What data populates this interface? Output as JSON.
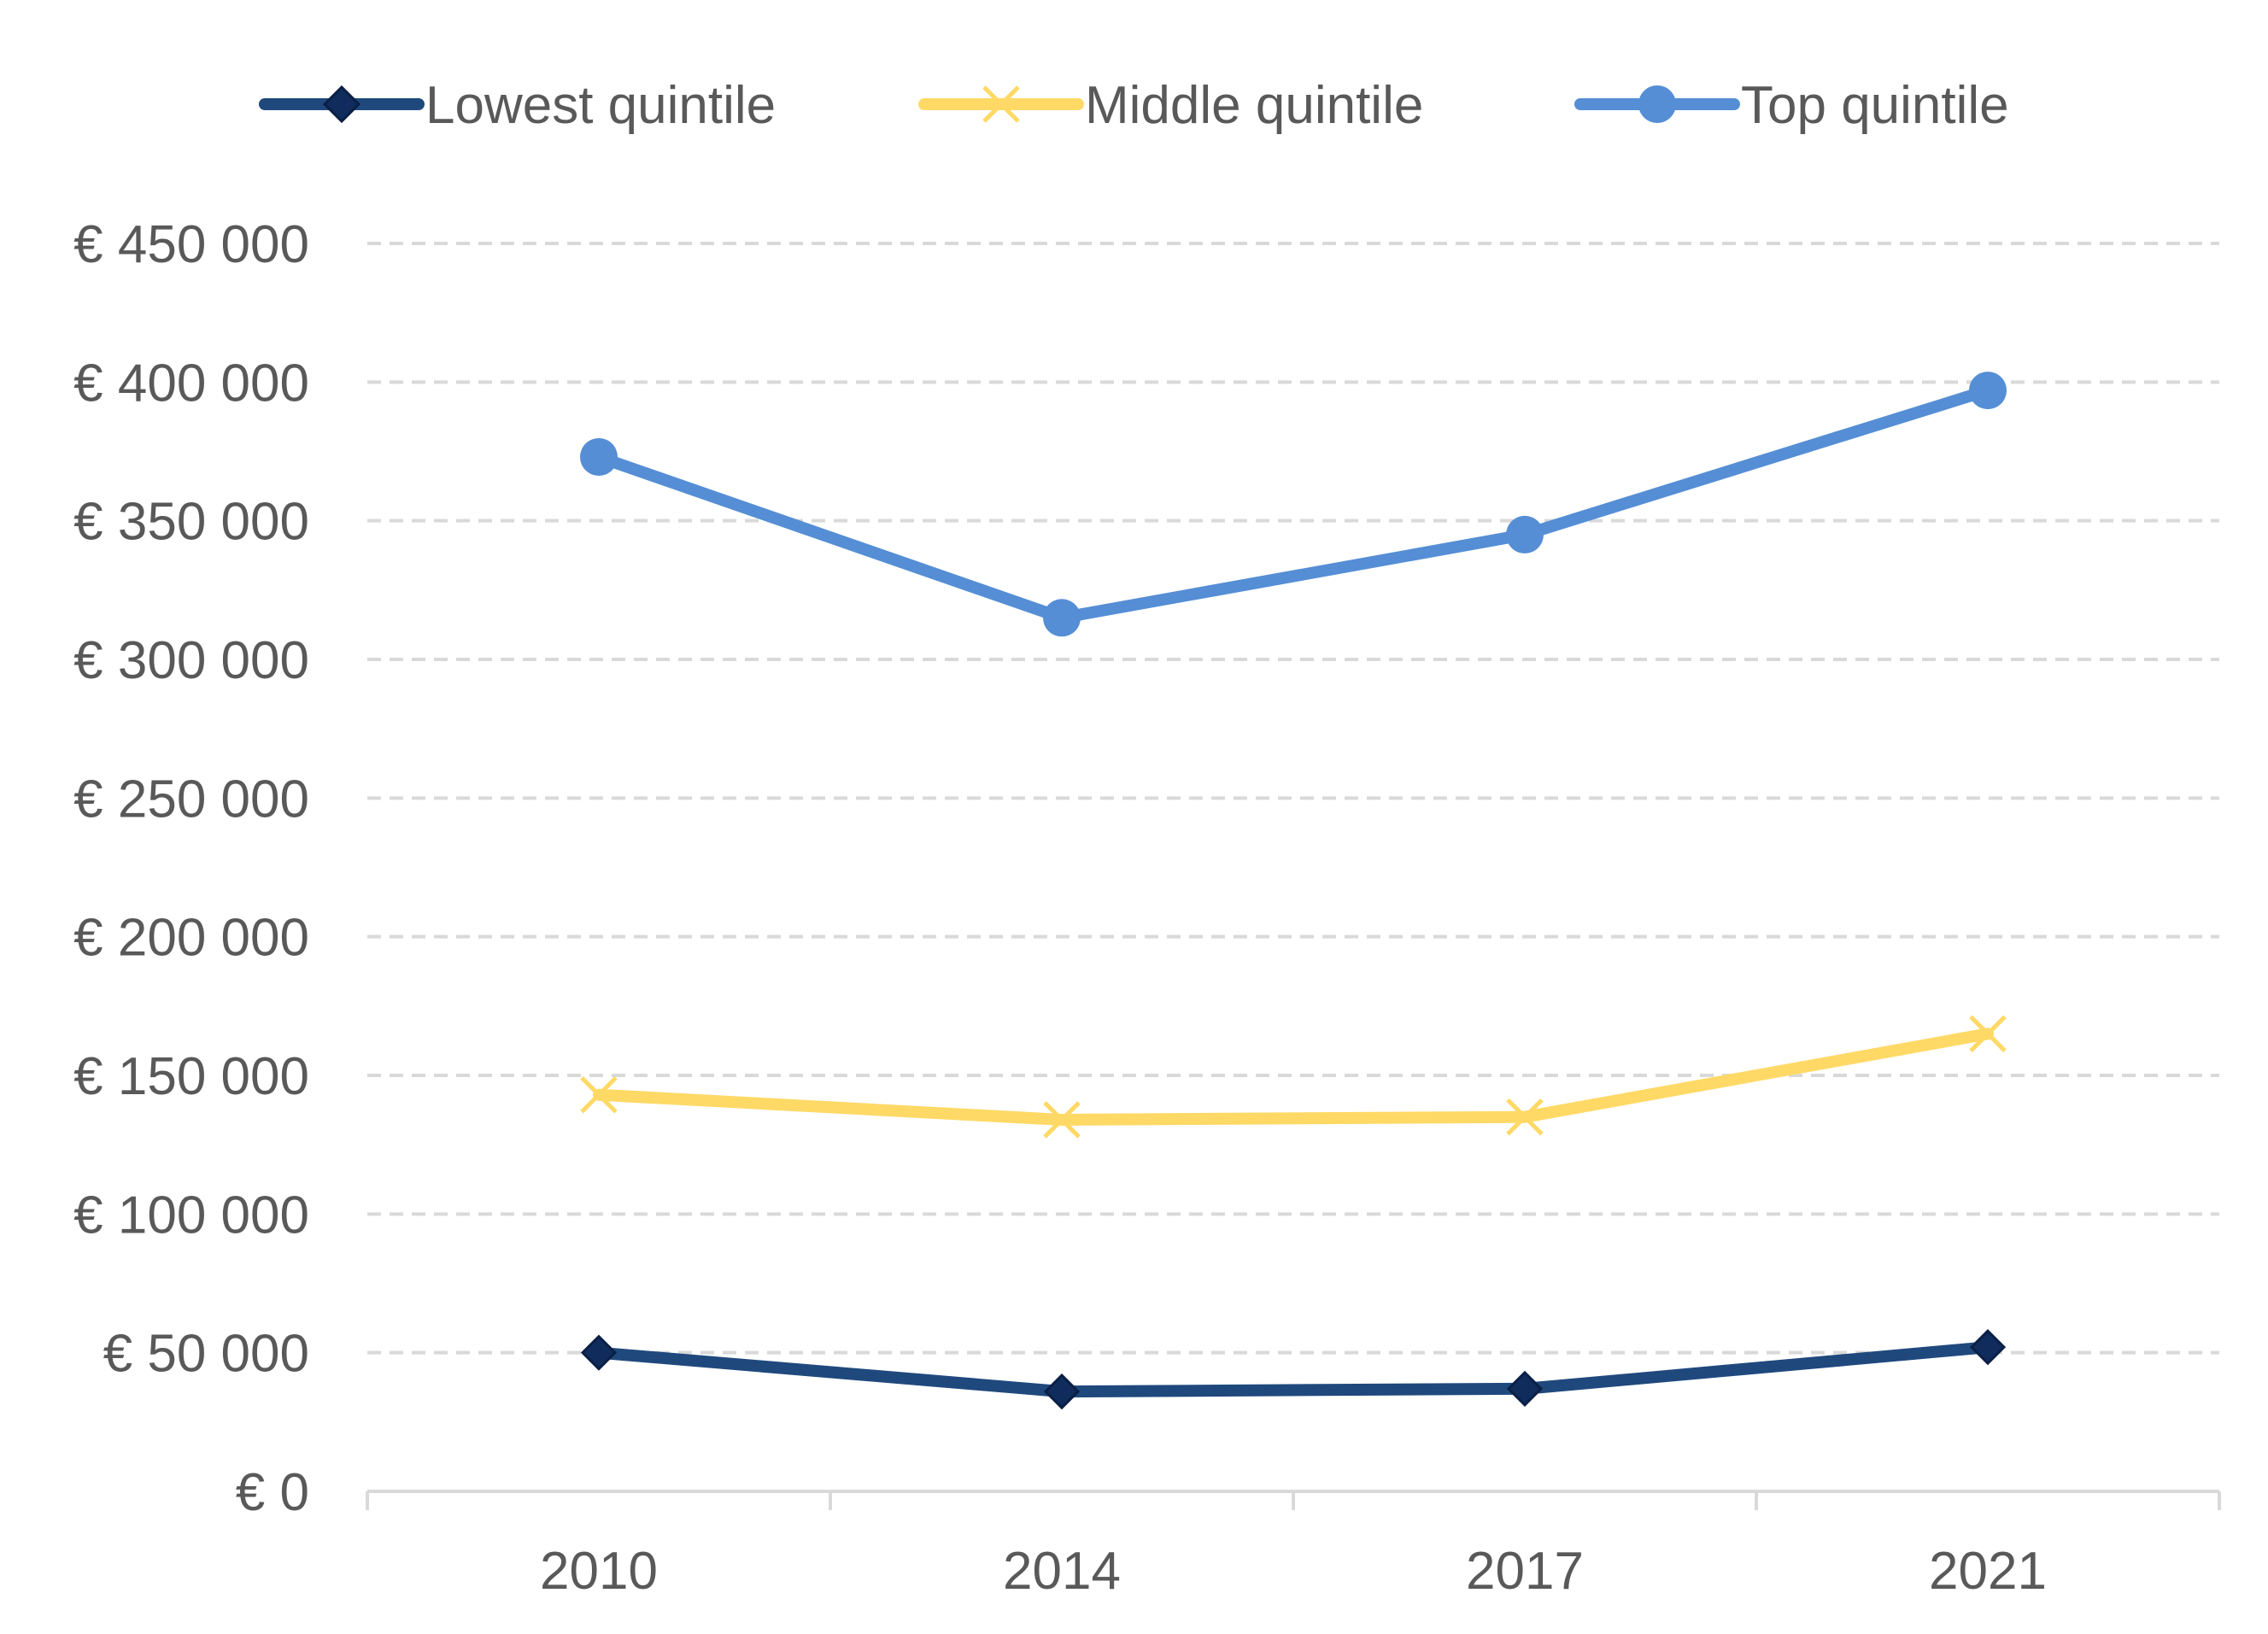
{
  "chart_data": {
    "type": "line",
    "categories": [
      "2010",
      "2014",
      "2017",
      "2021"
    ],
    "series": [
      {
        "name": "Lowest quintile",
        "values": [
          50000,
          36000,
          37000,
          52000
        ],
        "color": "#1F497D",
        "marker": "diamond",
        "marker_color": "#0F2C5C"
      },
      {
        "name": "Middle quintile",
        "values": [
          143000,
          134000,
          135000,
          165000
        ],
        "color": "#FFD966",
        "marker": "x",
        "marker_color": "#FFD966"
      },
      {
        "name": "Top quintile",
        "values": [
          373000,
          315000,
          345000,
          397000
        ],
        "color": "#558ED5",
        "marker": "circle",
        "marker_color": "#558ED5"
      }
    ],
    "y_ticks": [
      "€ 0",
      "€ 50 000",
      "€ 100 000",
      "€ 150 000",
      "€ 200 000",
      "€ 250 000",
      "€ 300 000",
      "€ 350 000",
      "€ 400 000",
      "€ 450 000"
    ],
    "ylim": [
      0,
      450000
    ],
    "y_step": 50000,
    "grid": true,
    "legend_position": "top",
    "title": "",
    "xlabel": "",
    "ylabel": ""
  }
}
